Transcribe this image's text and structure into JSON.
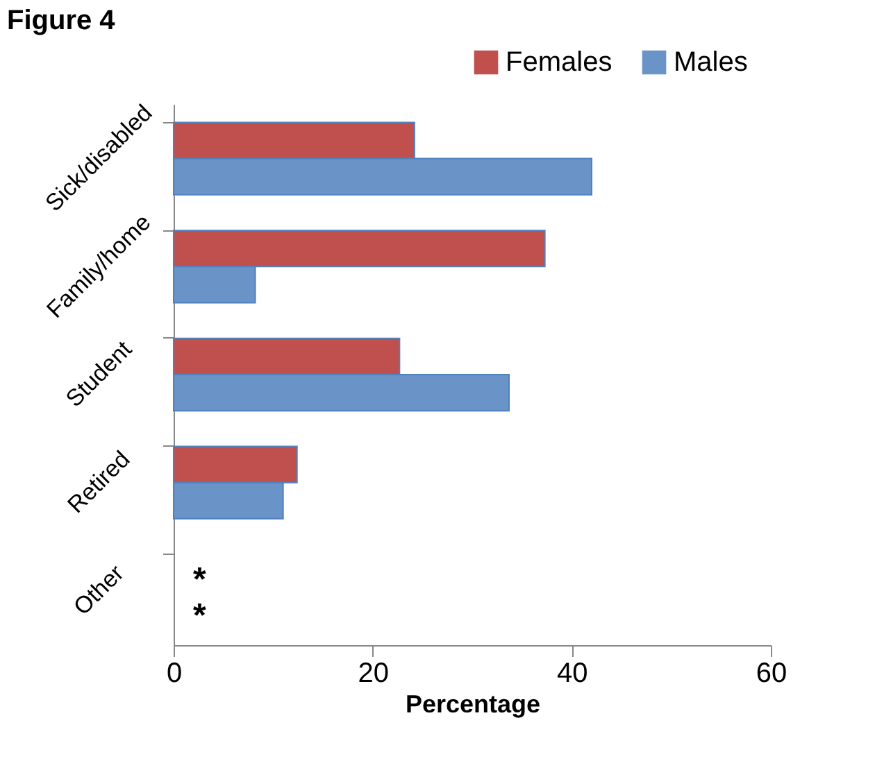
{
  "chart_data": {
    "type": "bar",
    "orientation": "horizontal",
    "title": "Figure 4",
    "xlabel": "Percentage",
    "categories": [
      "Sick/disabled",
      "Family/home",
      "Student",
      "Retired",
      "Other"
    ],
    "series": [
      {
        "name": "Females",
        "color": "#c0504d",
        "values": [
          24.2,
          37.3,
          22.7,
          12.4,
          null
        ],
        "value_labels": [
          null,
          null,
          null,
          null,
          "*"
        ]
      },
      {
        "name": "Males",
        "color": "#6a93c8",
        "values": [
          42.0,
          8.2,
          33.7,
          11.0,
          null
        ],
        "value_labels": [
          null,
          null,
          null,
          null,
          "*"
        ]
      }
    ],
    "xlim": [
      0,
      60
    ],
    "xticks": [
      0,
      20,
      40,
      60
    ],
    "grid": false,
    "legend": "top right"
  }
}
